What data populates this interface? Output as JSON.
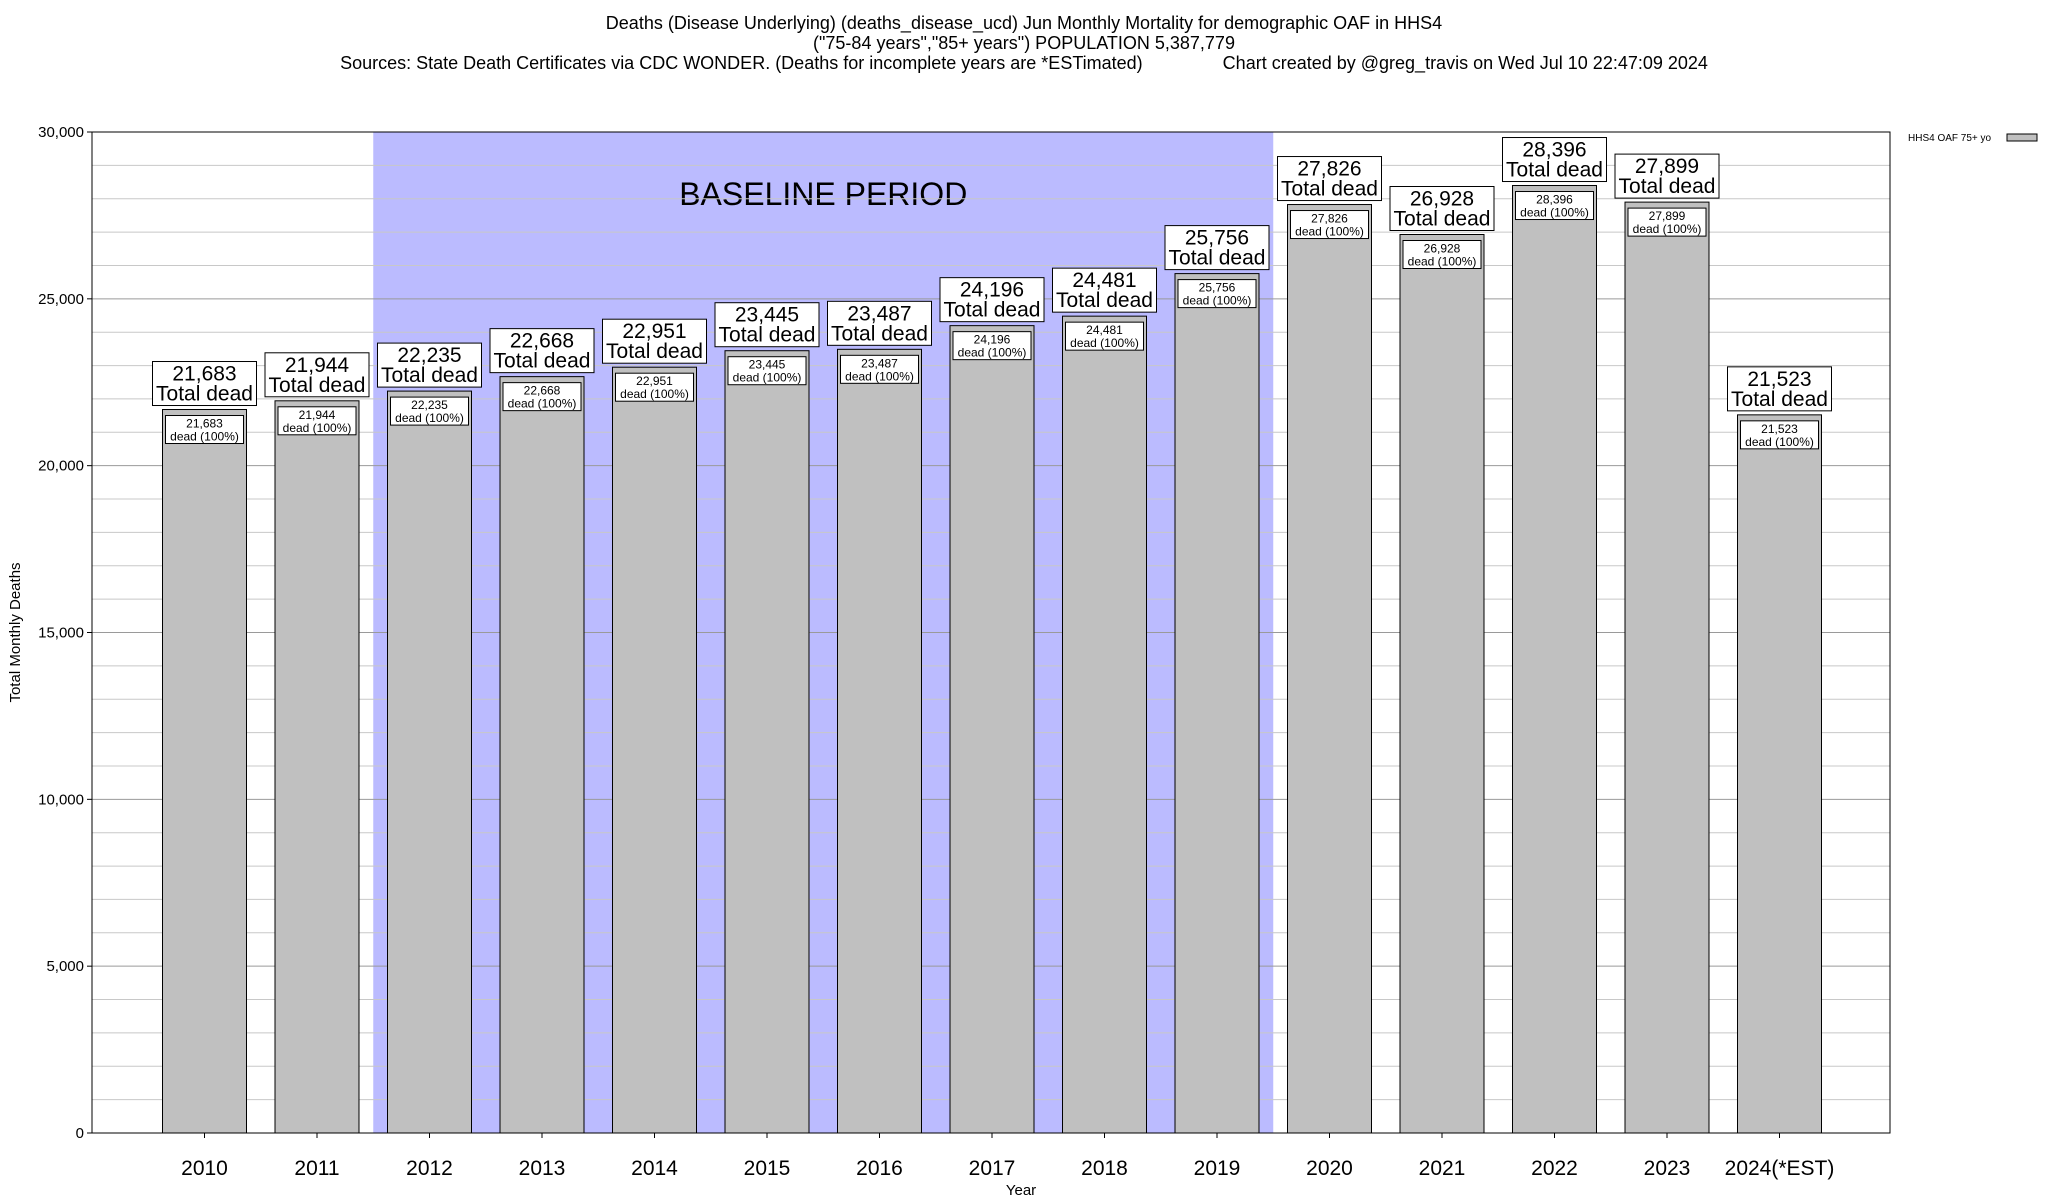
{
  "chart_data": {
    "type": "bar",
    "title_lines": [
      "Deaths (Disease Underlying) (deaths_disease_ucd) Jun Monthly Mortality for demographic OAF in HHS4",
      "(\"75-84 years\",\"85+ years\") POPULATION 5,387,779",
      "Sources: State Death Certificates via CDC WONDER. (Deaths for incomplete years are *ESTimated)                Chart created by @greg_travis on Wed Jul 10 22:47:09 2024"
    ],
    "xlabel": "Year",
    "ylabel": "Total Monthly Deaths",
    "ylim": [
      0,
      30000
    ],
    "y_ticks": [
      0,
      5000,
      10000,
      15000,
      20000,
      25000,
      30000
    ],
    "y_tick_labels": [
      "0",
      "5,000",
      "10,000",
      "15,000",
      "20,000",
      "25,000",
      "30,000"
    ],
    "categories": [
      "2010",
      "2011",
      "2012",
      "2013",
      "2014",
      "2015",
      "2016",
      "2017",
      "2018",
      "2019",
      "2020",
      "2021",
      "2022",
      "2023",
      "2024(*EST)"
    ],
    "series": [
      {
        "name": "HHS4 OAF 75+ yo",
        "color": "#c0c0c0",
        "values": [
          21683,
          21944,
          22235,
          22668,
          22951,
          23445,
          23487,
          24196,
          24481,
          25756,
          27826,
          26928,
          28396,
          27899,
          21523
        ]
      }
    ],
    "value_labels": [
      "21,683",
      "21,944",
      "22,235",
      "22,668",
      "22,951",
      "23,445",
      "23,487",
      "24,196",
      "24,481",
      "25,756",
      "27,826",
      "26,928",
      "28,396",
      "27,899",
      "21,523"
    ],
    "total_suffix": "Total dead",
    "inner_suffix": "dead (100%)",
    "baseline_period": {
      "label": "BASELINE PERIOD",
      "from": "2012",
      "to": "2019",
      "color": "#bbbbff"
    },
    "grid": true,
    "legend_position": "top-right"
  }
}
